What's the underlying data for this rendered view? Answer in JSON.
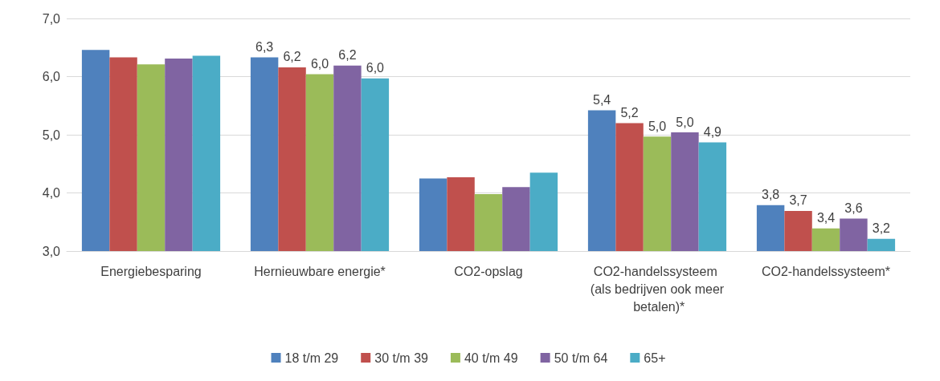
{
  "chart_data": {
    "type": "bar",
    "categories": [
      "Energiebesparing",
      "Hernieuwbare energie*",
      "CO2-opslag",
      "CO2-handelssysteem (als bedrijven ook meer betalen)*",
      "CO2-handelssysteem*"
    ],
    "series": [
      {
        "name": "18 t/m 29",
        "color": "#4f81bd",
        "values": [
          6.46,
          6.33,
          4.25,
          5.42,
          3.79
        ],
        "value_labels": [
          null,
          "6,3",
          null,
          "5,4",
          "3,8"
        ]
      },
      {
        "name": "30 t/m 39",
        "color": "#c0504d",
        "values": [
          6.33,
          6.16,
          4.27,
          5.2,
          3.69
        ],
        "value_labels": [
          null,
          "6,2",
          null,
          "5,2",
          "3,7"
        ]
      },
      {
        "name": "40 t/m 49",
        "color": "#9bbb59",
        "values": [
          6.21,
          6.04,
          3.98,
          4.97,
          3.39
        ],
        "value_labels": [
          null,
          "6,0",
          null,
          "5,0",
          "3,4"
        ]
      },
      {
        "name": "50 t/m 64",
        "color": "#8064a2",
        "values": [
          6.31,
          6.19,
          4.1,
          5.04,
          3.56
        ],
        "value_labels": [
          null,
          "6,2",
          null,
          "5,0",
          "3,6"
        ]
      },
      {
        "name": "65+",
        "color": "#4bacc6",
        "values": [
          6.36,
          5.97,
          4.35,
          4.87,
          3.21
        ],
        "value_labels": [
          null,
          "6,0",
          null,
          "4,9",
          "3,2"
        ]
      }
    ],
    "ylim": [
      3,
      7
    ],
    "yticks": [
      {
        "value": 3,
        "label": "3,0"
      },
      {
        "value": 4,
        "label": "4,0"
      },
      {
        "value": 5,
        "label": "5,0"
      },
      {
        "value": 6,
        "label": "6,0"
      },
      {
        "value": 7,
        "label": "7,0"
      }
    ],
    "grid": "y",
    "legend": "bottom"
  }
}
